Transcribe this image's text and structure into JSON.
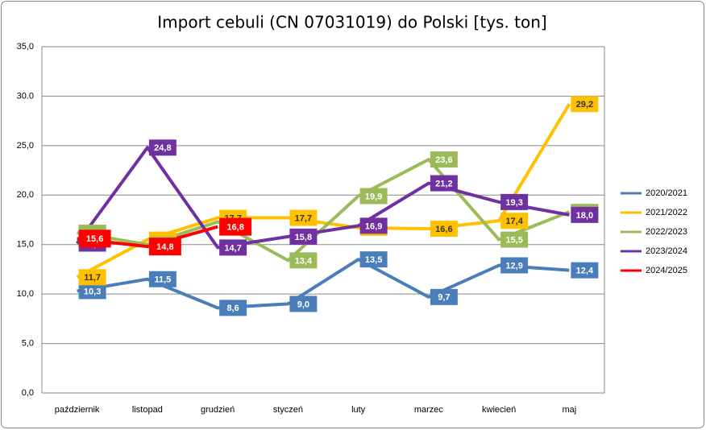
{
  "chart_data": {
    "type": "line",
    "title": "Import cebuli (CN 07031019)  do Polski [tys. ton]",
    "categories": [
      "październik",
      "listopad",
      "grudzień",
      "styczeń",
      "luty",
      "marzec",
      "kwiecień",
      "maj"
    ],
    "ylim": [
      0,
      35
    ],
    "yticks": [
      {
        "value": 0,
        "label": "0,0"
      },
      {
        "value": 5,
        "label": "5,0"
      },
      {
        "value": 10,
        "label": "10,0"
      },
      {
        "value": 15,
        "label": "15,0"
      },
      {
        "value": 20,
        "label": "20,0"
      },
      {
        "value": 25,
        "label": "25,0"
      },
      {
        "value": 30,
        "label": "30.0"
      },
      {
        "value": 35,
        "label": "35,0"
      }
    ],
    "grid": true,
    "legend": "right",
    "series": [
      {
        "name": "2020/2021",
        "color": "#4a7ebb",
        "values": [
          10.3,
          11.5,
          8.6,
          9.0,
          13.5,
          9.7,
          12.9,
          12.4
        ],
        "value_labels": [
          "10,3",
          "11,5",
          "8,6",
          "9,0",
          "13,5",
          "9,7",
          "12,9",
          "12,4"
        ]
      },
      {
        "name": "2021/2022",
        "color": "#ffc000",
        "values": [
          11.7,
          15.5,
          17.7,
          17.7,
          16.7,
          16.6,
          17.4,
          29.2
        ],
        "value_labels": [
          "11,7",
          "15,5",
          "17,7",
          "17,7",
          "16,7",
          "16,6",
          "17,4",
          "29,2"
        ]
      },
      {
        "name": "2022/2023",
        "color": "#9bbb59",
        "values": [
          16.2,
          15.0,
          17.3,
          13.4,
          19.9,
          23.6,
          15.5,
          18.3
        ],
        "value_labels": [
          "16,2",
          "15,0",
          null,
          "13,4",
          "19,9",
          "23,6",
          "15,5",
          "18,3"
        ]
      },
      {
        "name": "2023/2024",
        "color": "#7030a0",
        "values": [
          15.1,
          24.8,
          14.7,
          15.8,
          16.9,
          21.2,
          19.3,
          18.0
        ],
        "value_labels": [
          "15,1",
          "24,8",
          "14,7",
          "15,8",
          "16,9",
          "21,2",
          "19,3",
          "18,0"
        ]
      },
      {
        "name": "2024/2025",
        "color": "#ff0000",
        "values": [
          15.6,
          14.8,
          16.8,
          null,
          null,
          null,
          null,
          null
        ],
        "value_labels": [
          "15,6",
          "14,8",
          "16,8",
          null,
          null,
          null,
          null,
          null
        ]
      }
    ]
  }
}
